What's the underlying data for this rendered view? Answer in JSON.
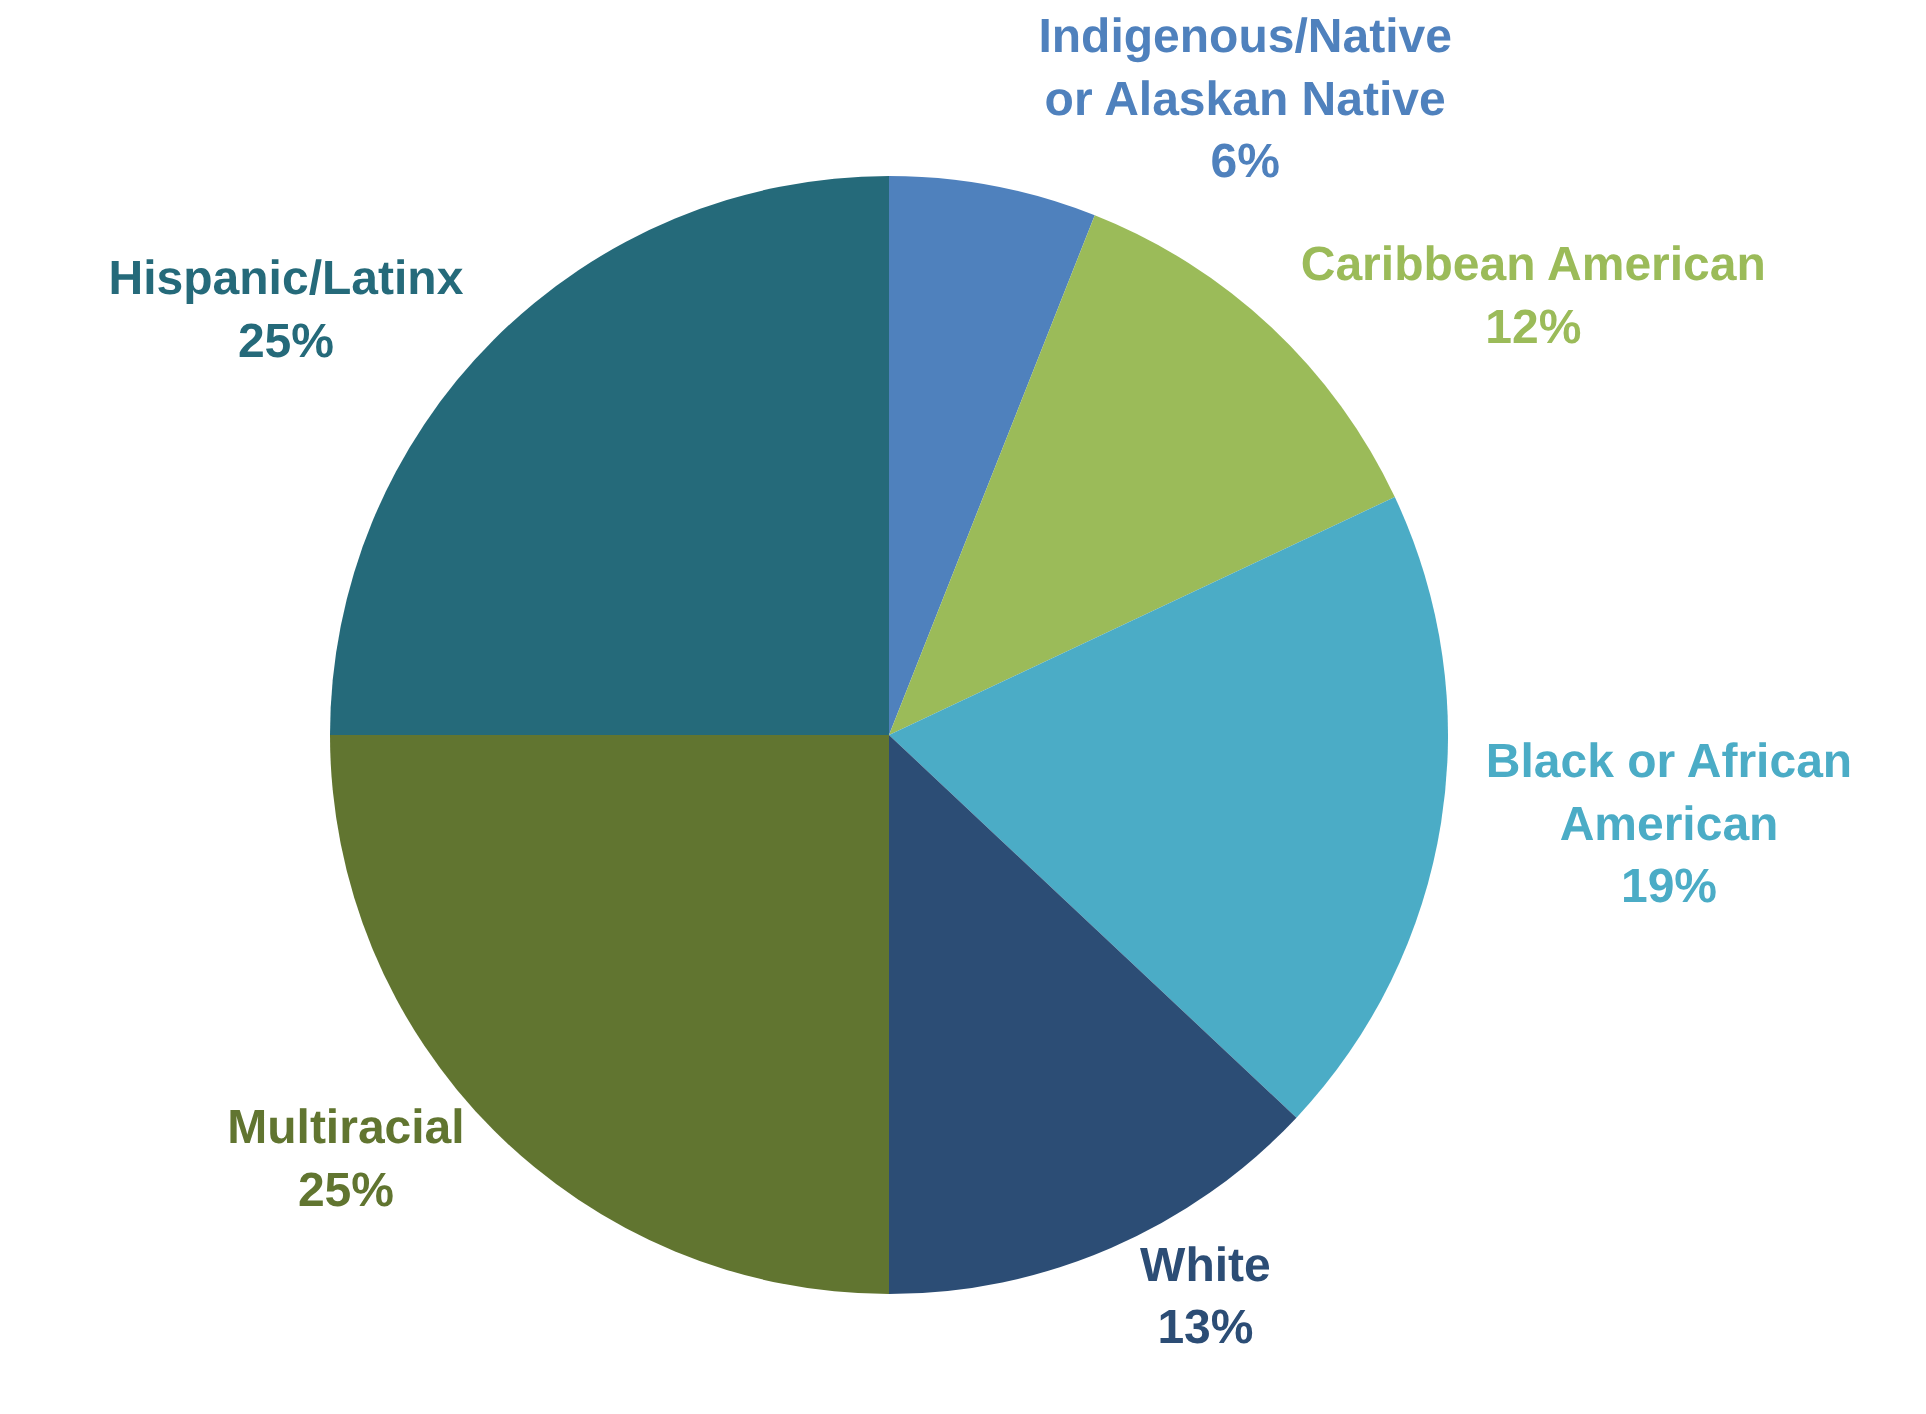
{
  "chart_data": {
    "type": "pie",
    "categories": [
      "Indigenous/Native or Alaskan Native",
      "Caribbean American",
      "Black or African American",
      "White",
      "Multiracial",
      "Hispanic/Latinx"
    ],
    "values": [
      6,
      12,
      19,
      13,
      25,
      25
    ],
    "value_labels": [
      "6%",
      "12%",
      "19%",
      "13%",
      "25%",
      "25%"
    ],
    "colors": [
      "#4f81bd",
      "#9bbb59",
      "#4bacc6",
      "#2c4d75",
      "#617530",
      "#256a7a"
    ],
    "legend": false
  }
}
